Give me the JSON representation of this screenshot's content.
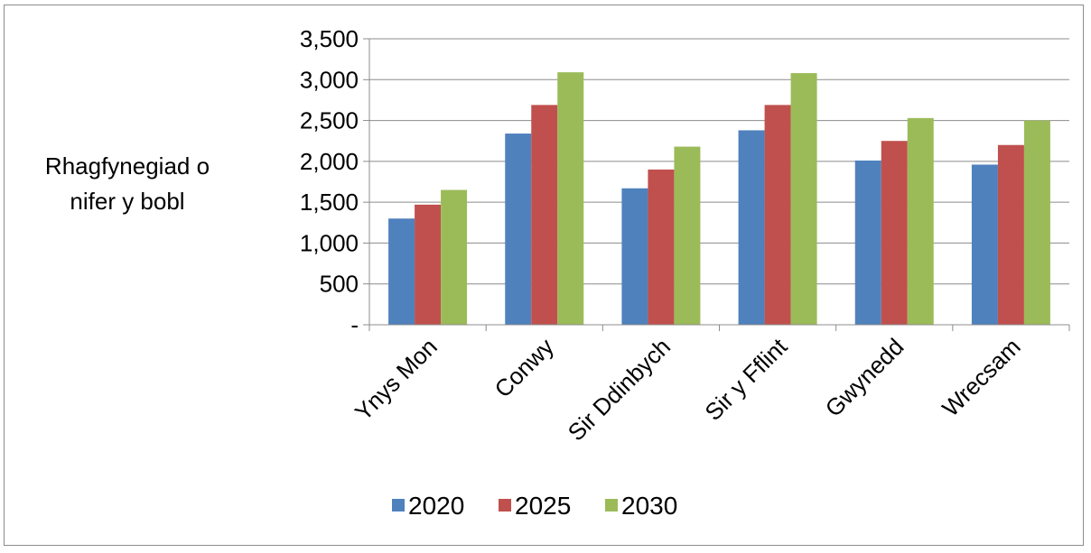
{
  "chart_data": {
    "type": "bar",
    "title": "",
    "xlabel": "",
    "ylabel_lines": [
      "Rhagfynegiad o",
      "nifer y bobl"
    ],
    "categories": [
      "Ynys Mon",
      "Conwy",
      "Sir Ddinbych",
      "Sir y Fflint",
      "Gwynedd",
      "Wrecsam"
    ],
    "series": [
      {
        "name": "2020",
        "color": "#4f81bd",
        "values": [
          1300,
          2340,
          1670,
          2380,
          2010,
          1960
        ]
      },
      {
        "name": "2025",
        "color": "#c0504d",
        "values": [
          1470,
          2690,
          1900,
          2690,
          2250,
          2200
        ]
      },
      {
        "name": "2030",
        "color": "#9bbb59",
        "values": [
          1650,
          3090,
          2180,
          3080,
          2530,
          2500
        ]
      }
    ],
    "ylim": [
      0,
      3500
    ],
    "yticks": [
      0,
      500,
      1000,
      1500,
      2000,
      2500,
      3000,
      3500
    ],
    "ytick_labels": [
      "-",
      "500",
      "1,000",
      "1,500",
      "2,000",
      "2,500",
      "3,000",
      "3,500"
    ],
    "grid": true,
    "legend_position": "bottom"
  }
}
